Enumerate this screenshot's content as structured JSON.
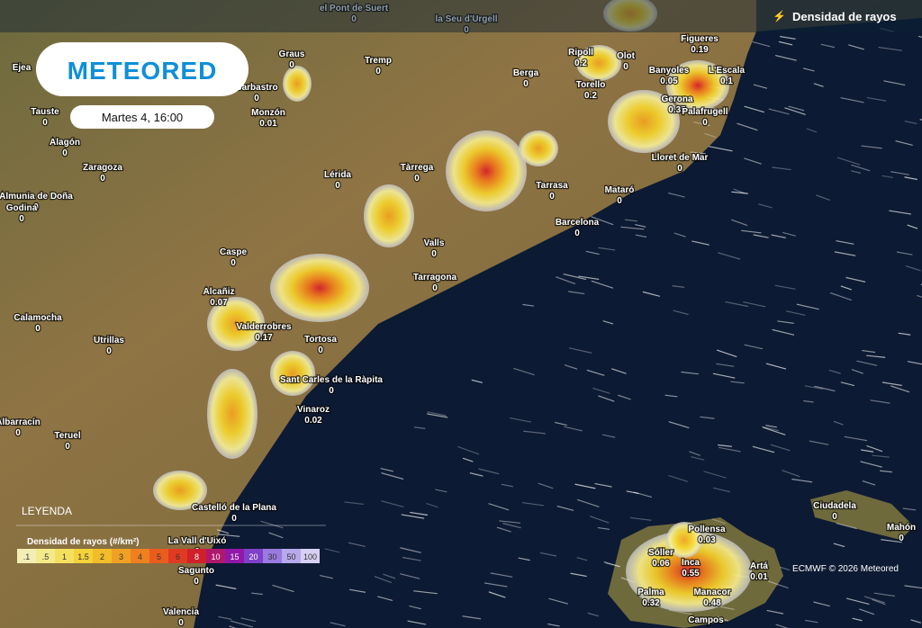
{
  "header": {
    "logo": "METEORED",
    "time": "Martes 4, 16:00",
    "layer": "Densidad de rayos"
  },
  "legend": {
    "title": "LEYENDA",
    "scale_title": "Densidad de rayos (#/km²)",
    "steps": [
      ".1",
      ".5",
      "1",
      "1.5",
      "2",
      "3",
      "4",
      "5",
      "6",
      "8",
      "10",
      "15",
      "20",
      "30",
      "50",
      "100"
    ]
  },
  "cities": [
    {
      "name": "el Pont de Suert",
      "value": "0"
    },
    {
      "name": "la Seu d'Urgell",
      "value": "0"
    },
    {
      "name": "Graus",
      "value": "0"
    },
    {
      "name": "Tremp",
      "value": "0"
    },
    {
      "name": "Ripoll",
      "value": "0.2"
    },
    {
      "name": "Olot",
      "value": "0"
    },
    {
      "name": "Figueres",
      "value": "0.19"
    },
    {
      "name": "Berga",
      "value": "0"
    },
    {
      "name": "Barbastro",
      "value": "0"
    },
    {
      "name": "Banyoles",
      "value": "0.05"
    },
    {
      "name": "L'Escala",
      "value": "0.1"
    },
    {
      "name": "Torello",
      "value": "0.2"
    },
    {
      "name": "Ejea"
    },
    {
      "name": "Tauste",
      "value": "0"
    },
    {
      "name": "Monzón",
      "value": "0.01"
    },
    {
      "name": "Gerona",
      "value": "0.35"
    },
    {
      "name": "Palafrugell",
      "value": "0"
    },
    {
      "name": "Alagón",
      "value": "0"
    },
    {
      "name": "Zaragoza",
      "value": "0"
    },
    {
      "name": "Lérida",
      "value": "0"
    },
    {
      "name": "Tàrrega",
      "value": "0"
    },
    {
      "name": "Lloret de Mar",
      "value": "0"
    },
    {
      "name": "Tarrasa",
      "value": "0"
    },
    {
      "name": "Mataró",
      "value": "0"
    },
    {
      "name": "Almunia de Doña",
      "value": "0"
    },
    {
      "name": "Godina",
      "value": "0"
    },
    {
      "name": "Barcelona",
      "value": "0"
    },
    {
      "name": "Valls",
      "value": "0"
    },
    {
      "name": "Caspe",
      "value": "0"
    },
    {
      "name": "Tarragona",
      "value": "0"
    },
    {
      "name": "Alcañiz",
      "value": "0.07"
    },
    {
      "name": "Calamocha",
      "value": "0"
    },
    {
      "name": "Valderrobres",
      "value": "0.17"
    },
    {
      "name": "Tortosa",
      "value": "0"
    },
    {
      "name": "Utrillas",
      "value": "0"
    },
    {
      "name": "Sant Carles de la Ràpita",
      "value": "0"
    },
    {
      "name": "Vinaroz",
      "value": "0.02"
    },
    {
      "name": "Albarracín",
      "value": "0"
    },
    {
      "name": "Teruel",
      "value": "0"
    },
    {
      "name": "Castelló de la Plana",
      "value": "0"
    },
    {
      "name": "La Vall d'Uixó",
      "value": "0"
    },
    {
      "name": "Sagunto",
      "value": "0"
    },
    {
      "name": "Valencia",
      "value": "0"
    },
    {
      "name": "Ciudadela",
      "value": "0"
    },
    {
      "name": "Mahón",
      "value": "0"
    },
    {
      "name": "Pollensa",
      "value": "0.03"
    },
    {
      "name": "Sóller",
      "value": "0.06"
    },
    {
      "name": "Inca",
      "value": "0.55"
    },
    {
      "name": "Artá",
      "value": "0.01"
    },
    {
      "name": "Palma",
      "value": "0.32"
    },
    {
      "name": "Manacor",
      "value": "0.48"
    },
    {
      "name": "Campos"
    }
  ],
  "credit": "ECMWF © 2026 Meteored"
}
